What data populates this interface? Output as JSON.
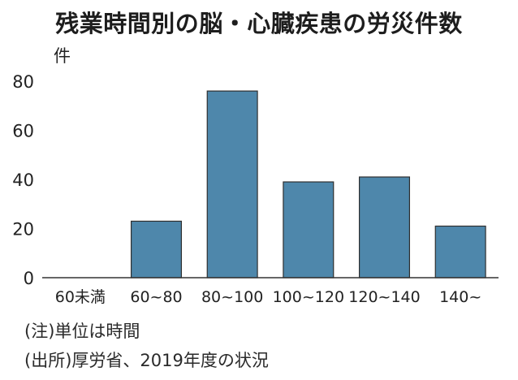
{
  "chart_data": {
    "type": "bar",
    "title": "残業時間別の脳・心臓疾患の労災件数",
    "ylabel": "件",
    "xlabel": "",
    "categories": [
      "60未満",
      "60~80",
      "80~100",
      "100~120",
      "120~140",
      "140~"
    ],
    "values": [
      0,
      23,
      76,
      39,
      41,
      21
    ],
    "ylim": [
      0,
      80
    ],
    "yticks": [
      "0",
      "20",
      "40",
      "60",
      "80"
    ],
    "grid": false,
    "bar_color": "#4e87ab"
  },
  "notes": {
    "unit": "(注)単位は時間",
    "source": "(出所)厚労省、2019年度の状況"
  }
}
